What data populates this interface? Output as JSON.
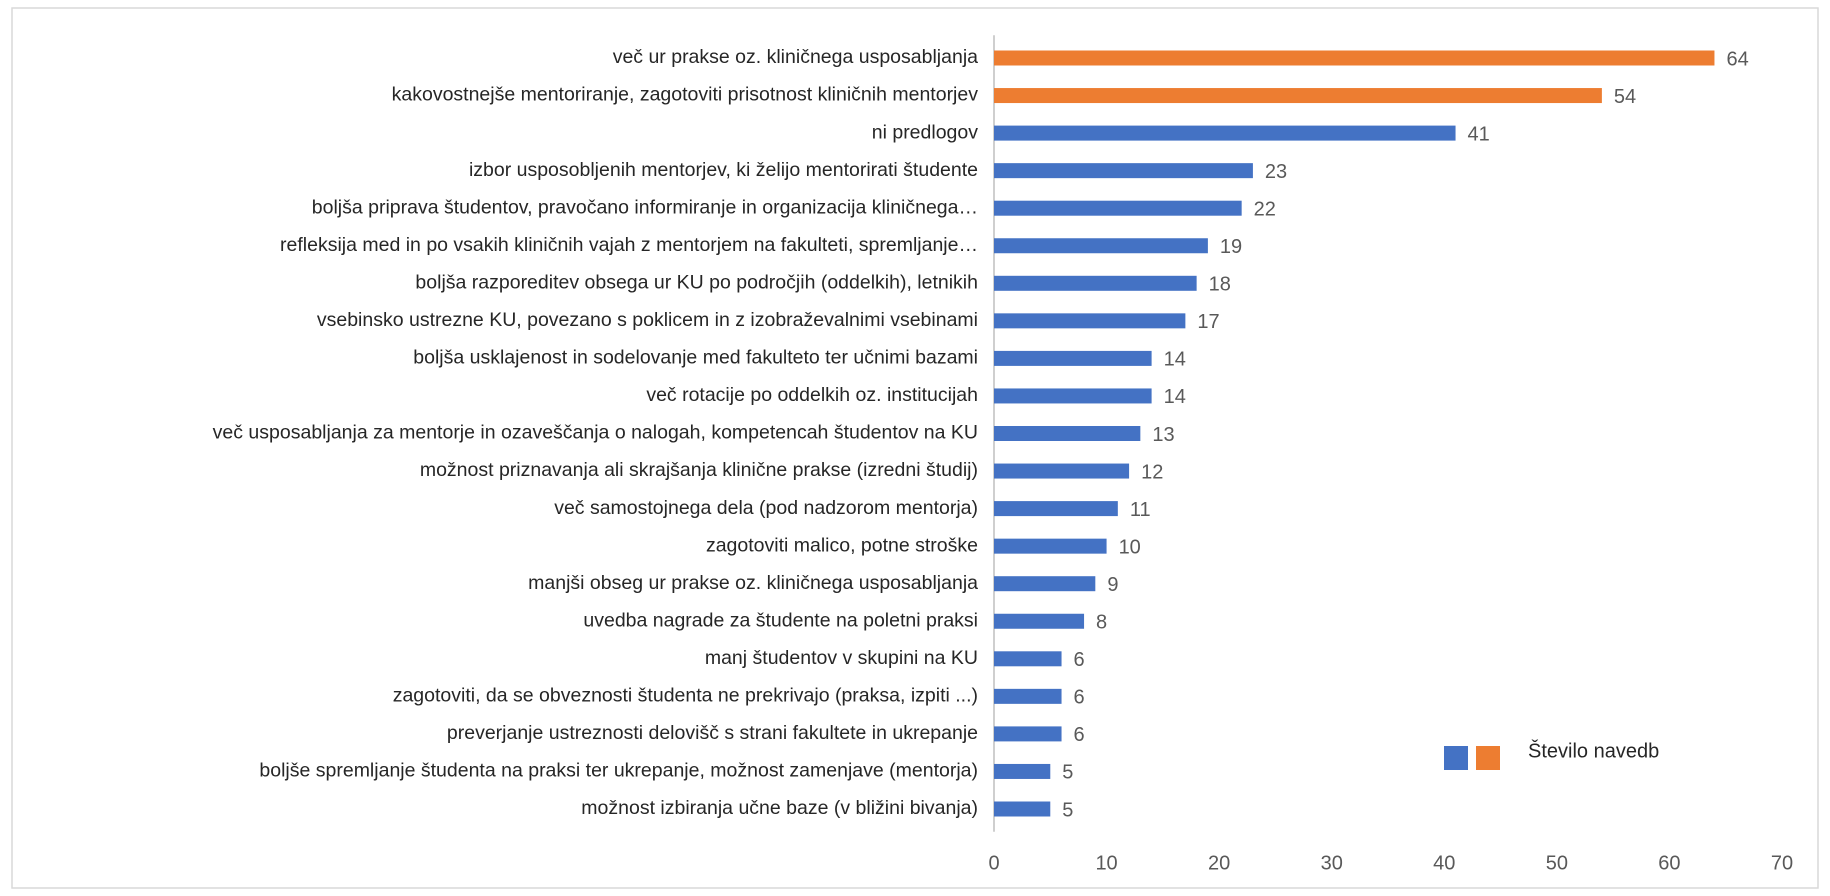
{
  "chart_data": {
    "type": "barh",
    "categories": [
      "več ur prakse oz. kliničnega usposabljanja",
      "kakovostnejše mentoriranje, zagotoviti prisotnost kliničnih mentorjev",
      "ni predlogov",
      "izbor usposobljenih mentorjev, ki želijo mentorirati študente",
      "boljša priprava študentov, pravočano informiranje in organizacija kliničnega…",
      "refleksija med in po vsakih kliničnih vajah z mentorjem na fakulteti, spremljanje…",
      "boljša razporeditev obsega ur KU po področjih (oddelkih), letnikih",
      "vsebinsko ustrezne KU, povezano s poklicem in z izobraževalnimi vsebinami",
      "boljša usklajenost in sodelovanje med fakulteto ter učnimi bazami",
      "več rotacije po oddelkih oz. institucijah",
      "več usposabljanja za mentorje in ozaveščanja o nalogah, kompetencah študentov na KU",
      "možnost priznavanja ali skrajšanja klinične prakse (izredni študij)",
      "več samostojnega dela (pod nadzorom mentorja)",
      "zagotoviti malico, potne stroške",
      "manjši obseg ur prakse oz. kliničnega usposabljanja",
      "uvedba nagrade za študente na poletni praksi",
      "manj študentov v skupini na KU",
      "zagotoviti, da se obveznosti študenta ne prekrivajo (praksa, izpiti ...)",
      "preverjanje ustreznosti delovišč s strani fakultete in ukrepanje",
      "boljše spremljanje študenta na praksi ter ukrepanje, možnost zamenjave (mentorja)",
      "možnost izbiranja učne baze (v bližini bivanja)"
    ],
    "series": [
      {
        "name": "Število navedb",
        "values": [
          64,
          54,
          41,
          23,
          22,
          19,
          18,
          17,
          14,
          14,
          13,
          12,
          11,
          10,
          9,
          8,
          6,
          6,
          6,
          5,
          5
        ],
        "colors": [
          "#ed7d31",
          "#ed7d31",
          "#4472c4",
          "#4472c4",
          "#4472c4",
          "#4472c4",
          "#4472c4",
          "#4472c4",
          "#4472c4",
          "#4472c4",
          "#4472c4",
          "#4472c4",
          "#4472c4",
          "#4472c4",
          "#4472c4",
          "#4472c4",
          "#4472c4",
          "#4472c4",
          "#4472c4",
          "#4472c4",
          "#4472c4"
        ]
      }
    ],
    "xlim": [
      0,
      70
    ],
    "xticks": [
      0,
      10,
      20,
      30,
      40,
      50,
      60,
      70
    ],
    "grid": false,
    "legend": "right"
  }
}
